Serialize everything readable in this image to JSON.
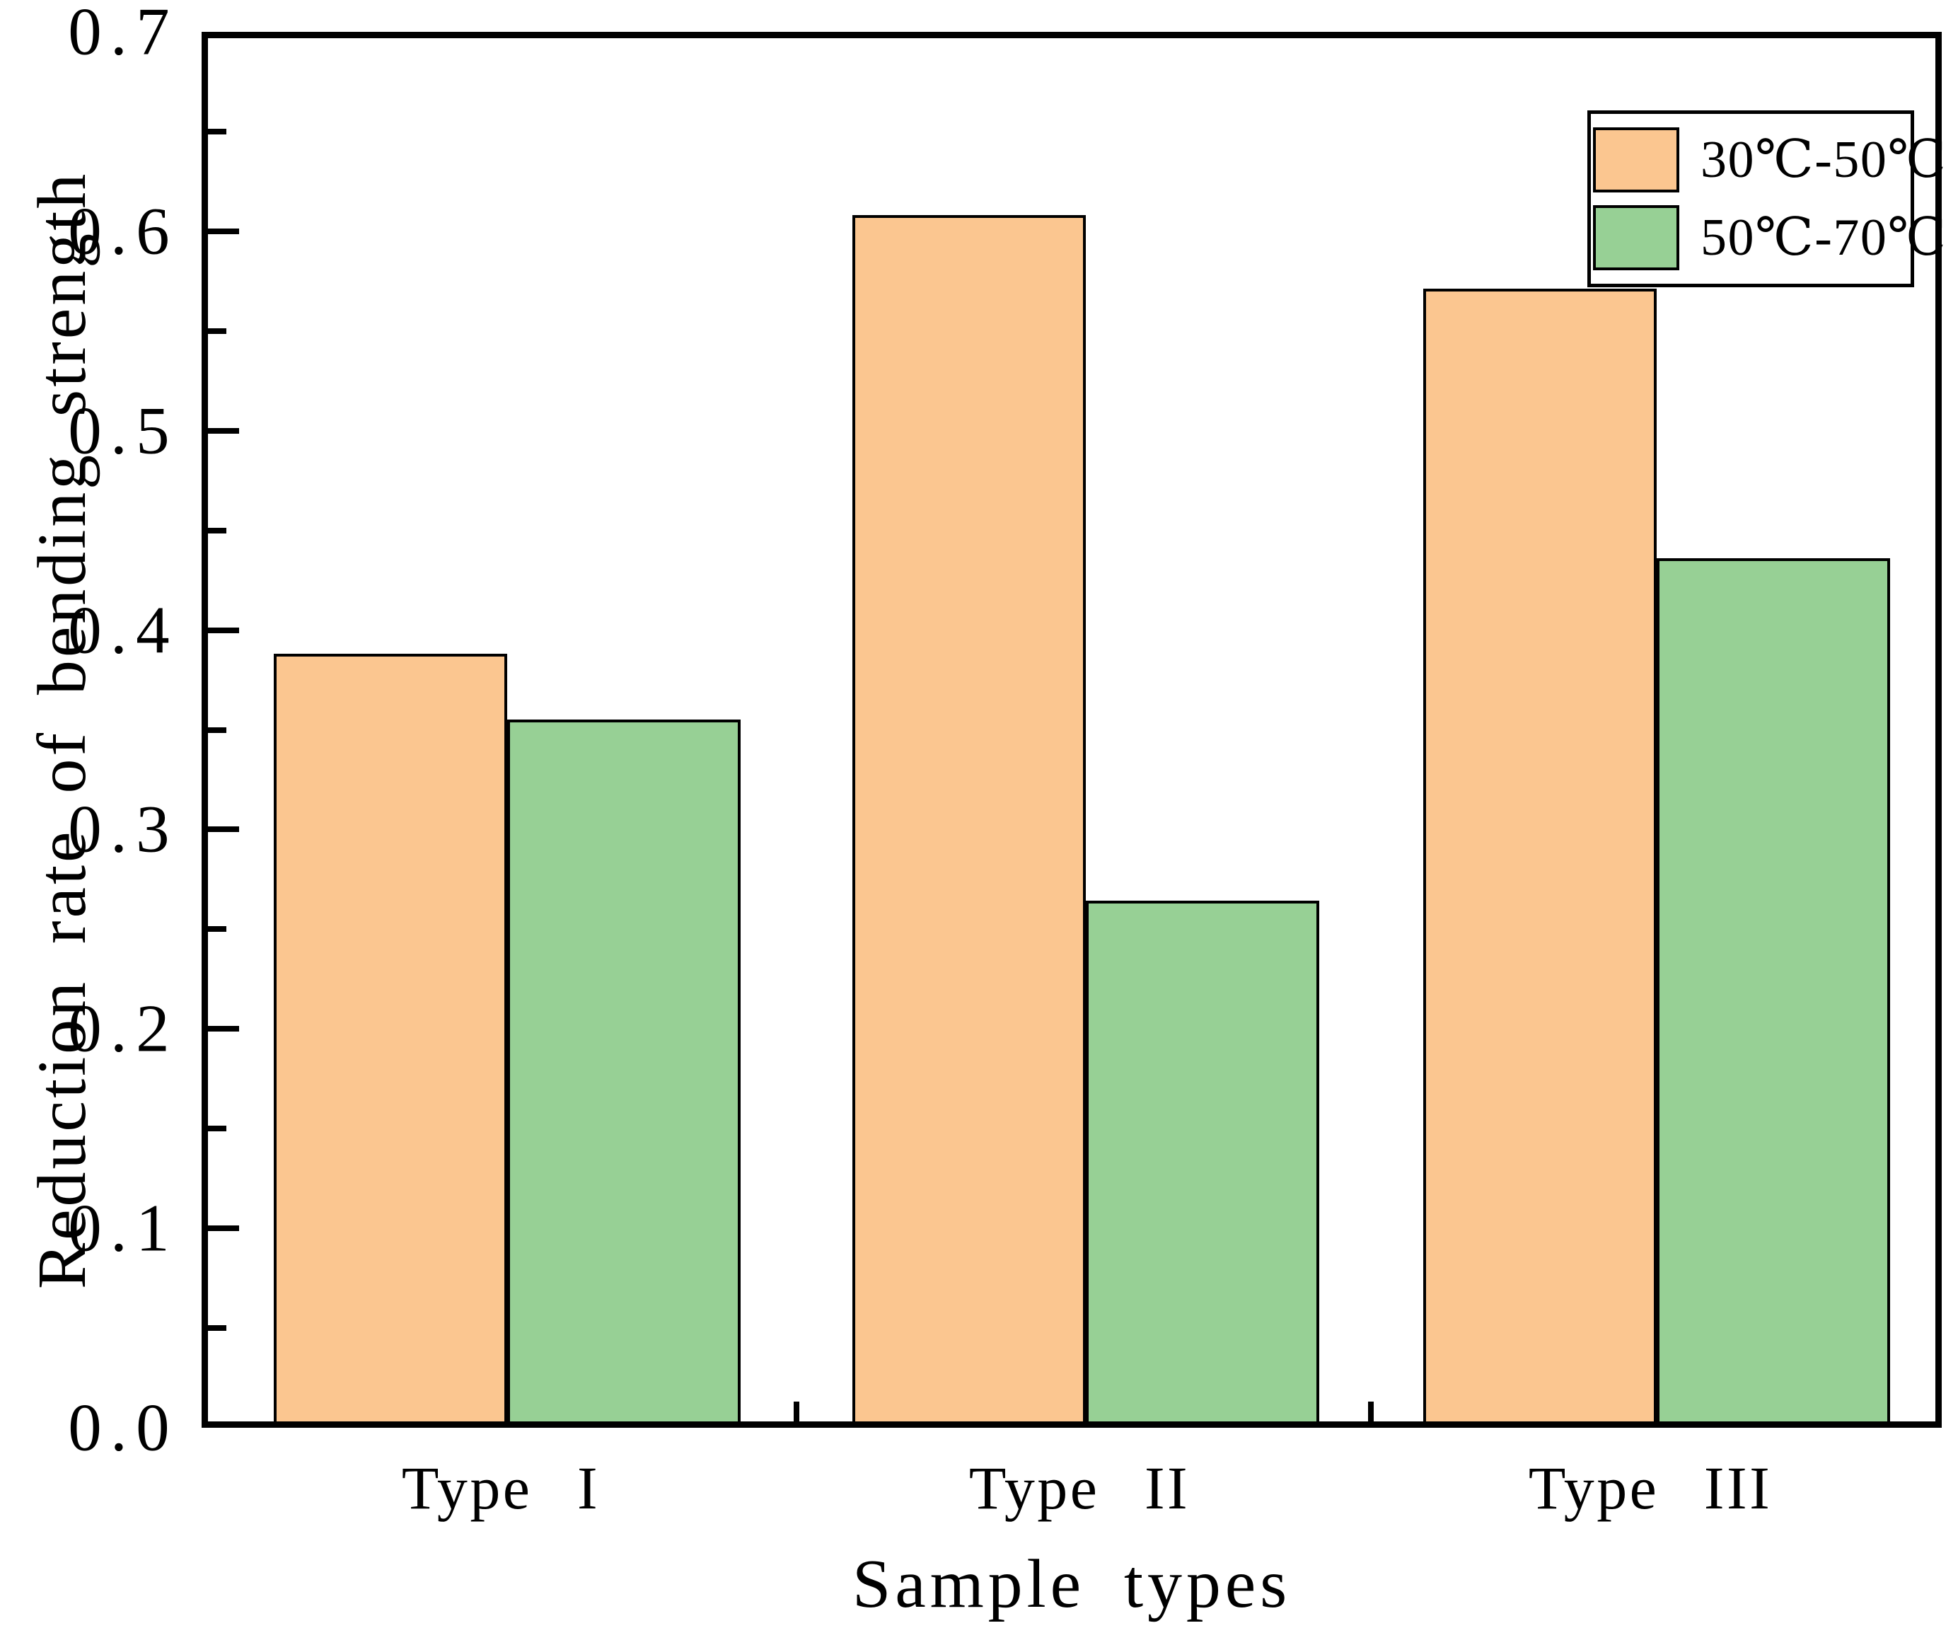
{
  "figure": {
    "y_axis": {
      "title": "Reduction rate of bending strength",
      "tick_labels": [
        "0.0",
        "0.1",
        "0.2",
        "0.3",
        "0.4",
        "0.5",
        "0.6",
        "0.7"
      ],
      "min": 0.0,
      "max": 0.7,
      "major_step": 0.1,
      "minor_step": 0.05
    },
    "x_axis": {
      "title": "Sample types",
      "categories": [
        "Type I",
        "Type II",
        "Type III"
      ]
    },
    "legend": {
      "position": "top-right",
      "items": [
        {
          "label": "30℃-50℃",
          "color": "#fbc690"
        },
        {
          "label": "50℃-70℃",
          "color": "#97d095"
        }
      ]
    }
  },
  "chart_data": {
    "type": "bar",
    "title": "",
    "categories": [
      "Type I",
      "Type II",
      "Type III"
    ],
    "series": [
      {
        "name": "30℃-50℃",
        "color": "#fbc690",
        "edge_color": "#000000",
        "values": [
          0.385,
          0.605,
          0.568
        ]
      },
      {
        "name": "50℃-70℃",
        "color": "#97d095",
        "edge_color": "#000000",
        "values": [
          0.352,
          0.261,
          0.433
        ]
      }
    ],
    "xlabel": "Sample types",
    "ylabel": "Reduction rate of bending strength",
    "ylim": [
      0,
      0.7
    ],
    "y_major_step": 0.1,
    "y_minor_step": 0.05,
    "grid": false,
    "legend_position": "top-right"
  }
}
